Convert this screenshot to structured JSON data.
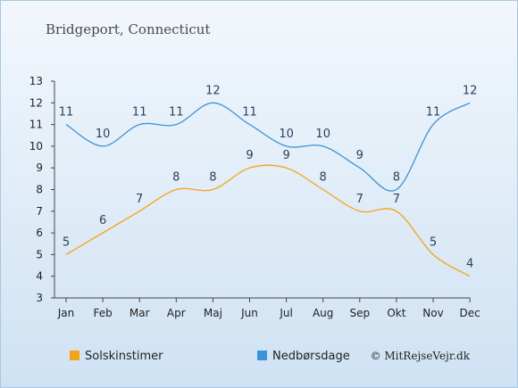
{
  "chart_data": {
    "type": "line",
    "title": "Bridgeport, Connecticut",
    "categories": [
      "Jan",
      "Feb",
      "Mar",
      "Apr",
      "Maj",
      "Jun",
      "Jul",
      "Aug",
      "Sep",
      "Okt",
      "Nov",
      "Dec"
    ],
    "series": [
      {
        "name": "Solskinstimer",
        "color": "#f5a21a",
        "values": [
          5,
          6,
          7,
          8,
          8,
          9,
          9,
          8,
          7,
          7,
          5,
          4
        ]
      },
      {
        "name": "Nedbørsdage",
        "color": "#3a94d8",
        "values": [
          11,
          10,
          11,
          11,
          12,
          11,
          10,
          10,
          9,
          8,
          11,
          12
        ]
      }
    ],
    "ylim": [
      3,
      13
    ],
    "yticks": [
      3,
      4,
      5,
      6,
      7,
      8,
      9,
      10,
      11,
      12,
      13
    ],
    "legend_position": "bottom",
    "credit": "© MitRejseVejr.dk"
  }
}
